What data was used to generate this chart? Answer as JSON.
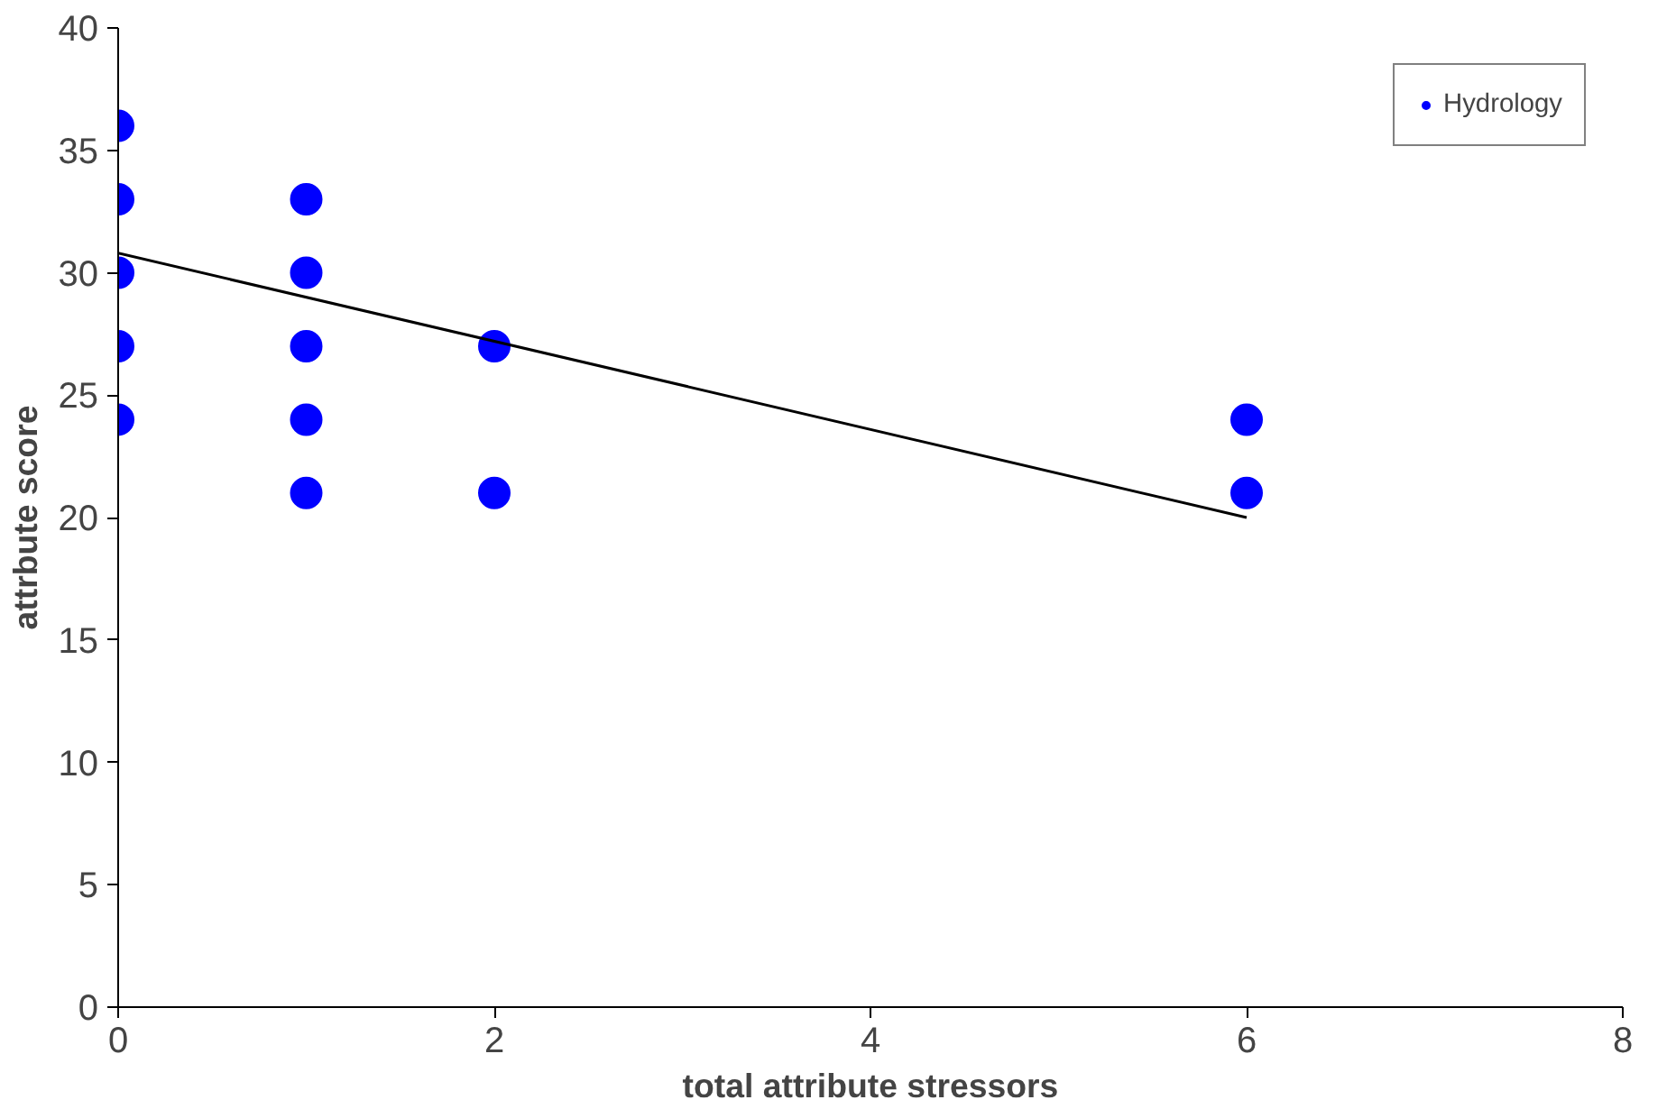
{
  "chart_data": {
    "type": "scatter",
    "xlabel": "total attribute stressors",
    "ylabel": "attrbute score",
    "xlim": [
      0,
      8
    ],
    "ylim": [
      0,
      40
    ],
    "xticks": [
      0,
      2,
      4,
      6,
      8
    ],
    "yticks": [
      0,
      5,
      10,
      15,
      20,
      25,
      30,
      35,
      40
    ],
    "grid": false,
    "legend": "top right",
    "series": [
      {
        "name": "Hydrology",
        "marker": "circle",
        "color": "#0000ff",
        "x": [
          0,
          0,
          0,
          0,
          0,
          1,
          1,
          1,
          1,
          1,
          2,
          2,
          6,
          6
        ],
        "values": [
          36,
          33,
          30,
          27,
          24,
          33,
          30,
          27,
          24,
          21,
          27,
          21,
          24,
          21
        ]
      },
      {
        "type": "line",
        "color": "#000000",
        "x": [
          0,
          6
        ],
        "values": [
          30.8,
          20
        ]
      }
    ]
  }
}
